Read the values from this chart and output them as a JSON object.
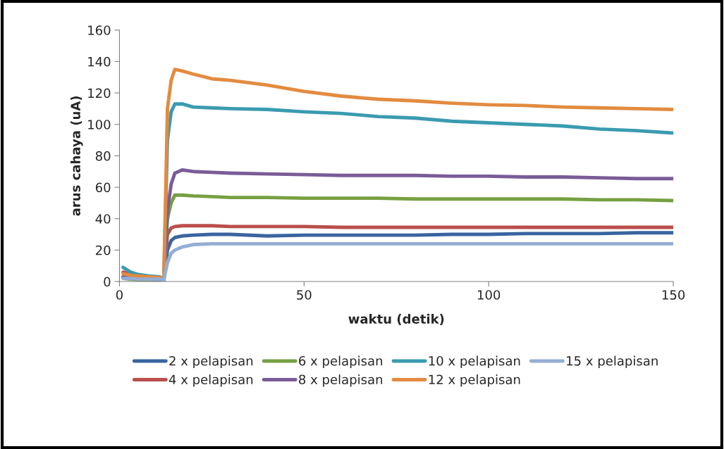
{
  "chart_data": {
    "type": "line",
    "xlabel": "waktu (detik)",
    "ylabel": "arus cahaya (uA)",
    "x": [
      1,
      3,
      5,
      8,
      11,
      12,
      13,
      14,
      15,
      17,
      20,
      25,
      30,
      40,
      50,
      60,
      70,
      80,
      90,
      100,
      110,
      120,
      130,
      140,
      150
    ],
    "series": [
      {
        "name": "2 x pelapisan",
        "color": "#3a64a0",
        "values": [
          3,
          2.5,
          2,
          1.5,
          1,
          0.5,
          20,
          26,
          28,
          29,
          29.5,
          30,
          30,
          29,
          29.5,
          29.5,
          29.5,
          29.5,
          30,
          30,
          30.5,
          30.5,
          30.5,
          31,
          31
        ]
      },
      {
        "name": "4 x pelapisan",
        "color": "#b94e4b",
        "values": [
          6,
          4.5,
          3.5,
          3,
          2.5,
          1,
          30,
          34,
          35,
          35.5,
          35.5,
          35.5,
          35,
          35,
          35,
          34.5,
          34.5,
          34.5,
          34.5,
          34.5,
          34.5,
          34.5,
          34.5,
          34.5,
          34.5
        ]
      },
      {
        "name": "6 x pelapisan",
        "color": "#77a042",
        "values": [
          2,
          1.5,
          1,
          1,
          1,
          0.5,
          40,
          50,
          55,
          55,
          54.5,
          54,
          53.5,
          53.5,
          53,
          53,
          53,
          52.5,
          52.5,
          52.5,
          52.5,
          52.5,
          52,
          52,
          51.5
        ]
      },
      {
        "name": "8 x pelapisan",
        "color": "#7a5c98",
        "values": [
          3,
          2.5,
          2,
          1.5,
          1,
          0.5,
          45,
          62,
          69,
          71,
          70,
          69.5,
          69,
          68.5,
          68,
          67.5,
          67.5,
          67.5,
          67,
          67,
          66.5,
          66.5,
          66,
          65.5,
          65.5
        ]
      },
      {
        "name": "10 x pelapisan",
        "color": "#3a9bb0",
        "values": [
          9,
          6,
          4.5,
          3.5,
          3,
          1,
          90,
          108,
          113,
          113,
          111,
          110.5,
          110,
          109.5,
          108,
          107,
          105,
          104,
          102,
          101,
          100,
          99,
          97,
          96,
          94.5
        ]
      },
      {
        "name": "12 x pelapisan",
        "color": "#e38b3f",
        "values": [
          5,
          4,
          3.5,
          3,
          2.5,
          1,
          110,
          128,
          135,
          134,
          132,
          129,
          128,
          125,
          121,
          118,
          116,
          115,
          113.5,
          112.5,
          112,
          111,
          110.5,
          110,
          109.5
        ]
      },
      {
        "name": "15 x pelapisan",
        "color": "#94add4",
        "values": [
          2,
          2,
          1.5,
          1.5,
          1.5,
          1,
          12,
          18,
          20,
          22,
          23.5,
          24,
          24,
          24,
          24,
          24,
          24,
          24,
          24,
          24,
          24,
          24,
          24,
          24,
          24
        ]
      }
    ],
    "xlim": [
      0,
      150
    ],
    "xticks": [
      0,
      50,
      100,
      150
    ],
    "ylim": [
      0,
      160
    ],
    "yticks": [
      0,
      20,
      40,
      60,
      80,
      100,
      120,
      140,
      160
    ],
    "grid": false,
    "legend": "bottom",
    "marker": "none",
    "line_style": "solid"
  }
}
